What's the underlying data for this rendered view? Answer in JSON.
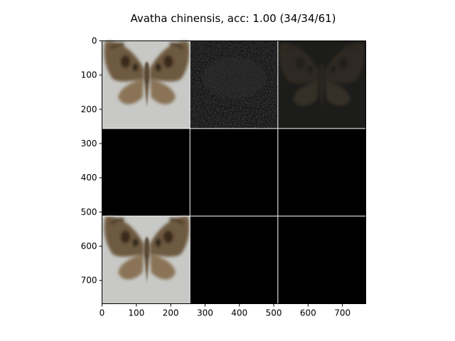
{
  "figure": {
    "title": "Avatha chinensis, acc: 1.00 (34/34/61)"
  },
  "image_grid": {
    "rows": 3,
    "cols": 3,
    "cell_size": 256,
    "extent": [
      0,
      768
    ],
    "cells": [
      {
        "row": 0,
        "col": 0,
        "content": "moth-reconstruction",
        "tone": "light"
      },
      {
        "row": 0,
        "col": 1,
        "content": "noise-pattern",
        "tone": "dark"
      },
      {
        "row": 0,
        "col": 2,
        "content": "faint-moth",
        "tone": "dark"
      },
      {
        "row": 1,
        "col": 0,
        "content": "blank",
        "tone": "black"
      },
      {
        "row": 1,
        "col": 1,
        "content": "blank",
        "tone": "black"
      },
      {
        "row": 1,
        "col": 2,
        "content": "blank",
        "tone": "black"
      },
      {
        "row": 2,
        "col": 0,
        "content": "moth-reconstruction",
        "tone": "light"
      },
      {
        "row": 2,
        "col": 1,
        "content": "blank",
        "tone": "black"
      },
      {
        "row": 2,
        "col": 2,
        "content": "blank",
        "tone": "black"
      }
    ]
  },
  "axes": {
    "x_ticks": [
      0,
      100,
      200,
      300,
      400,
      500,
      600,
      700
    ],
    "y_ticks": [
      0,
      100,
      200,
      300,
      400,
      500,
      600,
      700
    ]
  }
}
